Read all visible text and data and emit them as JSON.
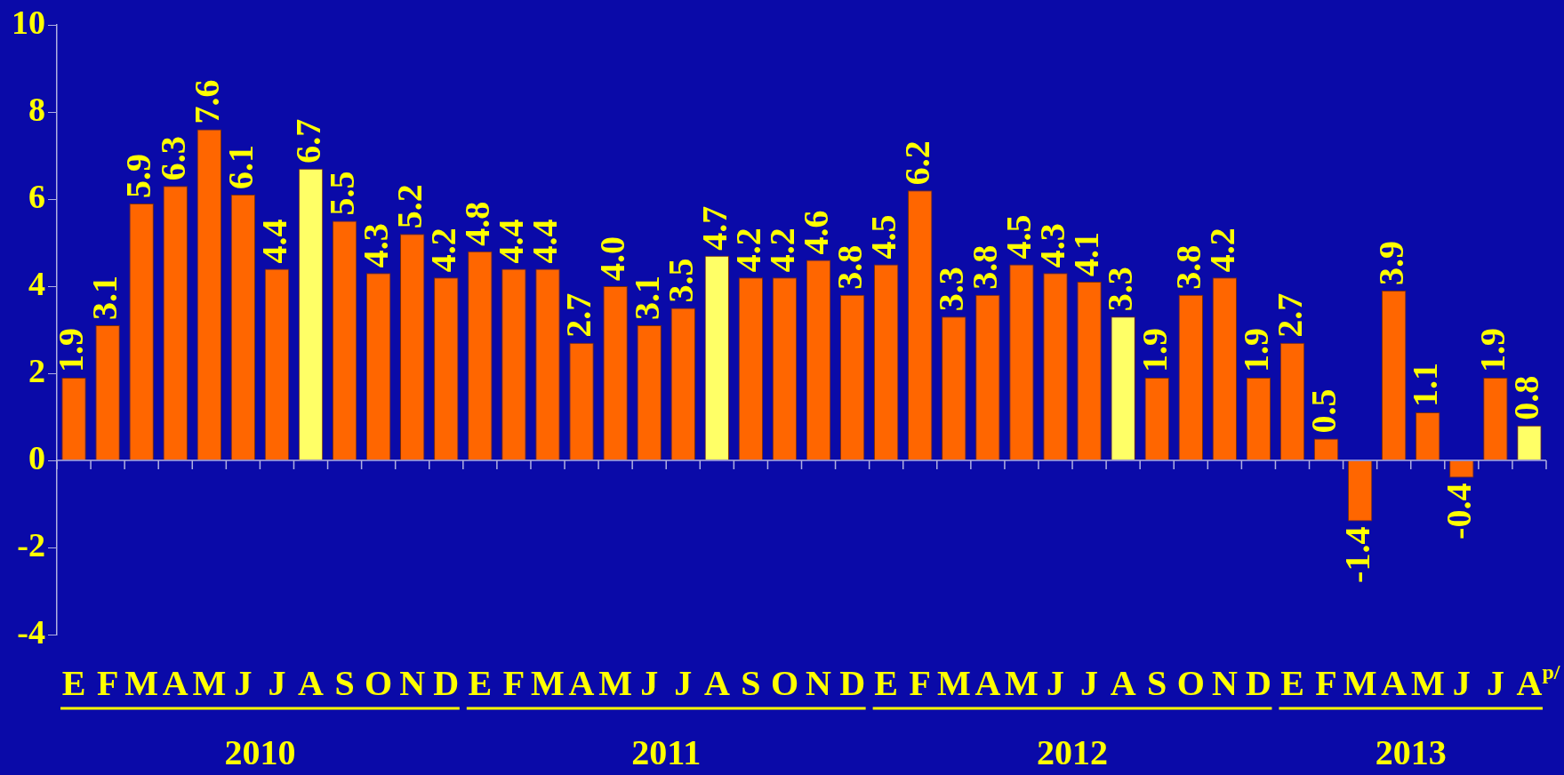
{
  "chart_data": {
    "type": "bar",
    "categories": [
      "E",
      "F",
      "M",
      "A",
      "M",
      "J",
      "J",
      "A",
      "S",
      "O",
      "N",
      "D",
      "E",
      "F",
      "M",
      "A",
      "M",
      "J",
      "J",
      "A",
      "S",
      "O",
      "N",
      "D",
      "E",
      "F",
      "M",
      "A",
      "M",
      "J",
      "J",
      "A",
      "S",
      "O",
      "N",
      "D",
      "E",
      "F",
      "M",
      "A",
      "M",
      "J",
      "J",
      "A$^{p/}$"
    ],
    "values": [
      1.9,
      3.1,
      5.9,
      6.3,
      7.6,
      6.1,
      4.4,
      6.7,
      5.5,
      4.3,
      5.2,
      4.2,
      4.8,
      4.4,
      4.4,
      2.7,
      4.0,
      3.1,
      3.5,
      4.7,
      4.2,
      4.2,
      4.6,
      3.8,
      4.5,
      6.2,
      3.3,
      3.8,
      4.5,
      4.3,
      4.1,
      3.3,
      1.9,
      3.8,
      4.2,
      1.9,
      2.7,
      0.5,
      -1.4,
      3.9,
      1.1,
      -0.4,
      1.9,
      0.8
    ],
    "colors": [
      "#ff6600",
      "#ff6600",
      "#ff6600",
      "#ff6600",
      "#ff6600",
      "#ff6600",
      "#ff6600",
      "#ffff66",
      "#ff6600",
      "#ff6600",
      "#ff6600",
      "#ff6600",
      "#ff6600",
      "#ff6600",
      "#ff6600",
      "#ff6600",
      "#ff6600",
      "#ff6600",
      "#ff6600",
      "#ffff66",
      "#ff6600",
      "#ff6600",
      "#ff6600",
      "#ff6600",
      "#ff6600",
      "#ff6600",
      "#ff6600",
      "#ff6600",
      "#ff6600",
      "#ff6600",
      "#ff6600",
      "#ffff66",
      "#ff6600",
      "#ff6600",
      "#ff6600",
      "#ff6600",
      "#ff6600",
      "#ff6600",
      "#ff6600",
      "#ff6600",
      "#ff6600",
      "#ff6600",
      "#ff6600",
      "#ffff66"
    ],
    "ylim": [
      -4,
      10
    ],
    "yticks": [
      -4,
      -2,
      0,
      2,
      4,
      6,
      8,
      10
    ],
    "value_labels": [
      "1.9",
      "3.1",
      "5.9",
      "6.3",
      "7.6",
      "6.1",
      "4.4",
      "6.7",
      "5.5",
      "4.3",
      "5.2",
      "4.2",
      "4.8",
      "4.4",
      "4.4",
      "2.7",
      "4.0",
      "3.1",
      "3.5",
      "4.7",
      "4.2",
      "4.2",
      "4.6",
      "3.8",
      "4.5",
      "6.2",
      "3.3",
      "3.8",
      "4.5",
      "4.3",
      "4.1",
      "3.3",
      "1.9",
      "3.8",
      "4.2",
      "1.9",
      "2.7",
      "0.5",
      "-1.4",
      "3.9",
      "1.1",
      "-0.4",
      "1.9",
      "0.8"
    ],
    "ref_lines": [
      {
        "axis": "y",
        "value": 0,
        "color": "#b0b0e0"
      }
    ],
    "grid": false,
    "legend": false,
    "annotations": [
      "2010",
      "2011",
      "2012",
      "2013"
    ]
  }
}
